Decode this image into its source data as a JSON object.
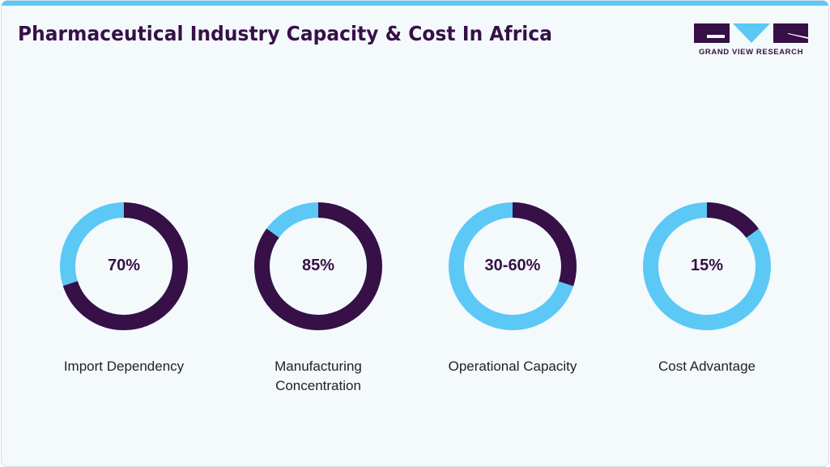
{
  "title": "Pharmaceutical Industry Capacity & Cost In Africa",
  "logo": {
    "text": "GRAND VIEW RESEARCH"
  },
  "colors": {
    "dark": "#361046",
    "light": "#5bc8f5"
  },
  "chart_data": {
    "type": "pie",
    "subtype": "donut",
    "title": "Pharmaceutical Industry Capacity & Cost In Africa",
    "items": [
      {
        "label": "Import Dependency",
        "display": "70%",
        "value": 70
      },
      {
        "label": "Manufacturing Concentration",
        "display": "85%",
        "value": 85
      },
      {
        "label": "Operational Capacity",
        "display": "30-60%",
        "value": 30
      },
      {
        "label": "Cost Advantage",
        "display": "15%",
        "value": 15
      }
    ]
  }
}
